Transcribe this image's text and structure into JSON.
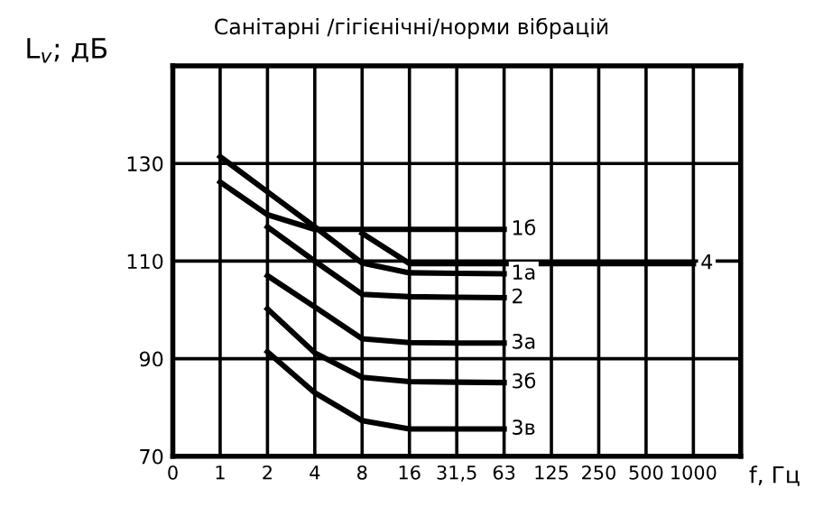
{
  "chart_data": {
    "type": "line",
    "title": "Санітарні /гігієнічні/норми вібрацій",
    "xlabel": "f, Гц",
    "ylabel": "L$_{v}$; дБ",
    "categories": [
      "0",
      "1",
      "2",
      "4",
      "8",
      "16",
      "31,5",
      "63",
      "125",
      "250",
      "500",
      "1000"
    ],
    "series": [
      {
        "name": "1б",
        "color": "#000000",
        "values": [
          null,
          126.2,
          119.5,
          116.5,
          116.5,
          116.5,
          116.5,
          116.5,
          null,
          null,
          null,
          null
        ]
      },
      {
        "name": "1а",
        "color": "#000000",
        "values": [
          null,
          131.4,
          124.2,
          117.0,
          109.6,
          107.6,
          107.5,
          107.4,
          null,
          null,
          null,
          null
        ]
      },
      {
        "name": "4",
        "color": "#000000",
        "values": [
          null,
          null,
          null,
          null,
          115.7,
          109.5,
          109.5,
          109.5,
          109.5,
          109.5,
          109.5,
          109.5
        ]
      },
      {
        "name": "2",
        "color": "#000000",
        "values": [
          null,
          null,
          117.0,
          110.0,
          103.2,
          102.7,
          102.6,
          102.5,
          null,
          null,
          null,
          null
        ]
      },
      {
        "name": "3а",
        "color": "#000000",
        "values": [
          null,
          null,
          107.0,
          100.6,
          94.1,
          93.3,
          93.2,
          93.2,
          null,
          null,
          null,
          null
        ]
      },
      {
        "name": "3б",
        "color": "#000000",
        "values": [
          null,
          null,
          100.2,
          91.2,
          86.2,
          85.3,
          85.2,
          85.1,
          null,
          null,
          null,
          null
        ]
      },
      {
        "name": "3в",
        "color": "#000000",
        "values": [
          null,
          null,
          91.4,
          83.0,
          77.3,
          75.6,
          75.6,
          75.6,
          null,
          null,
          null,
          null
        ]
      }
    ],
    "ylim": [
      70,
      150
    ],
    "yticks": [
      70,
      90,
      110,
      130
    ],
    "grid": true,
    "legend": false,
    "marker": "none",
    "line_style": "solid"
  }
}
